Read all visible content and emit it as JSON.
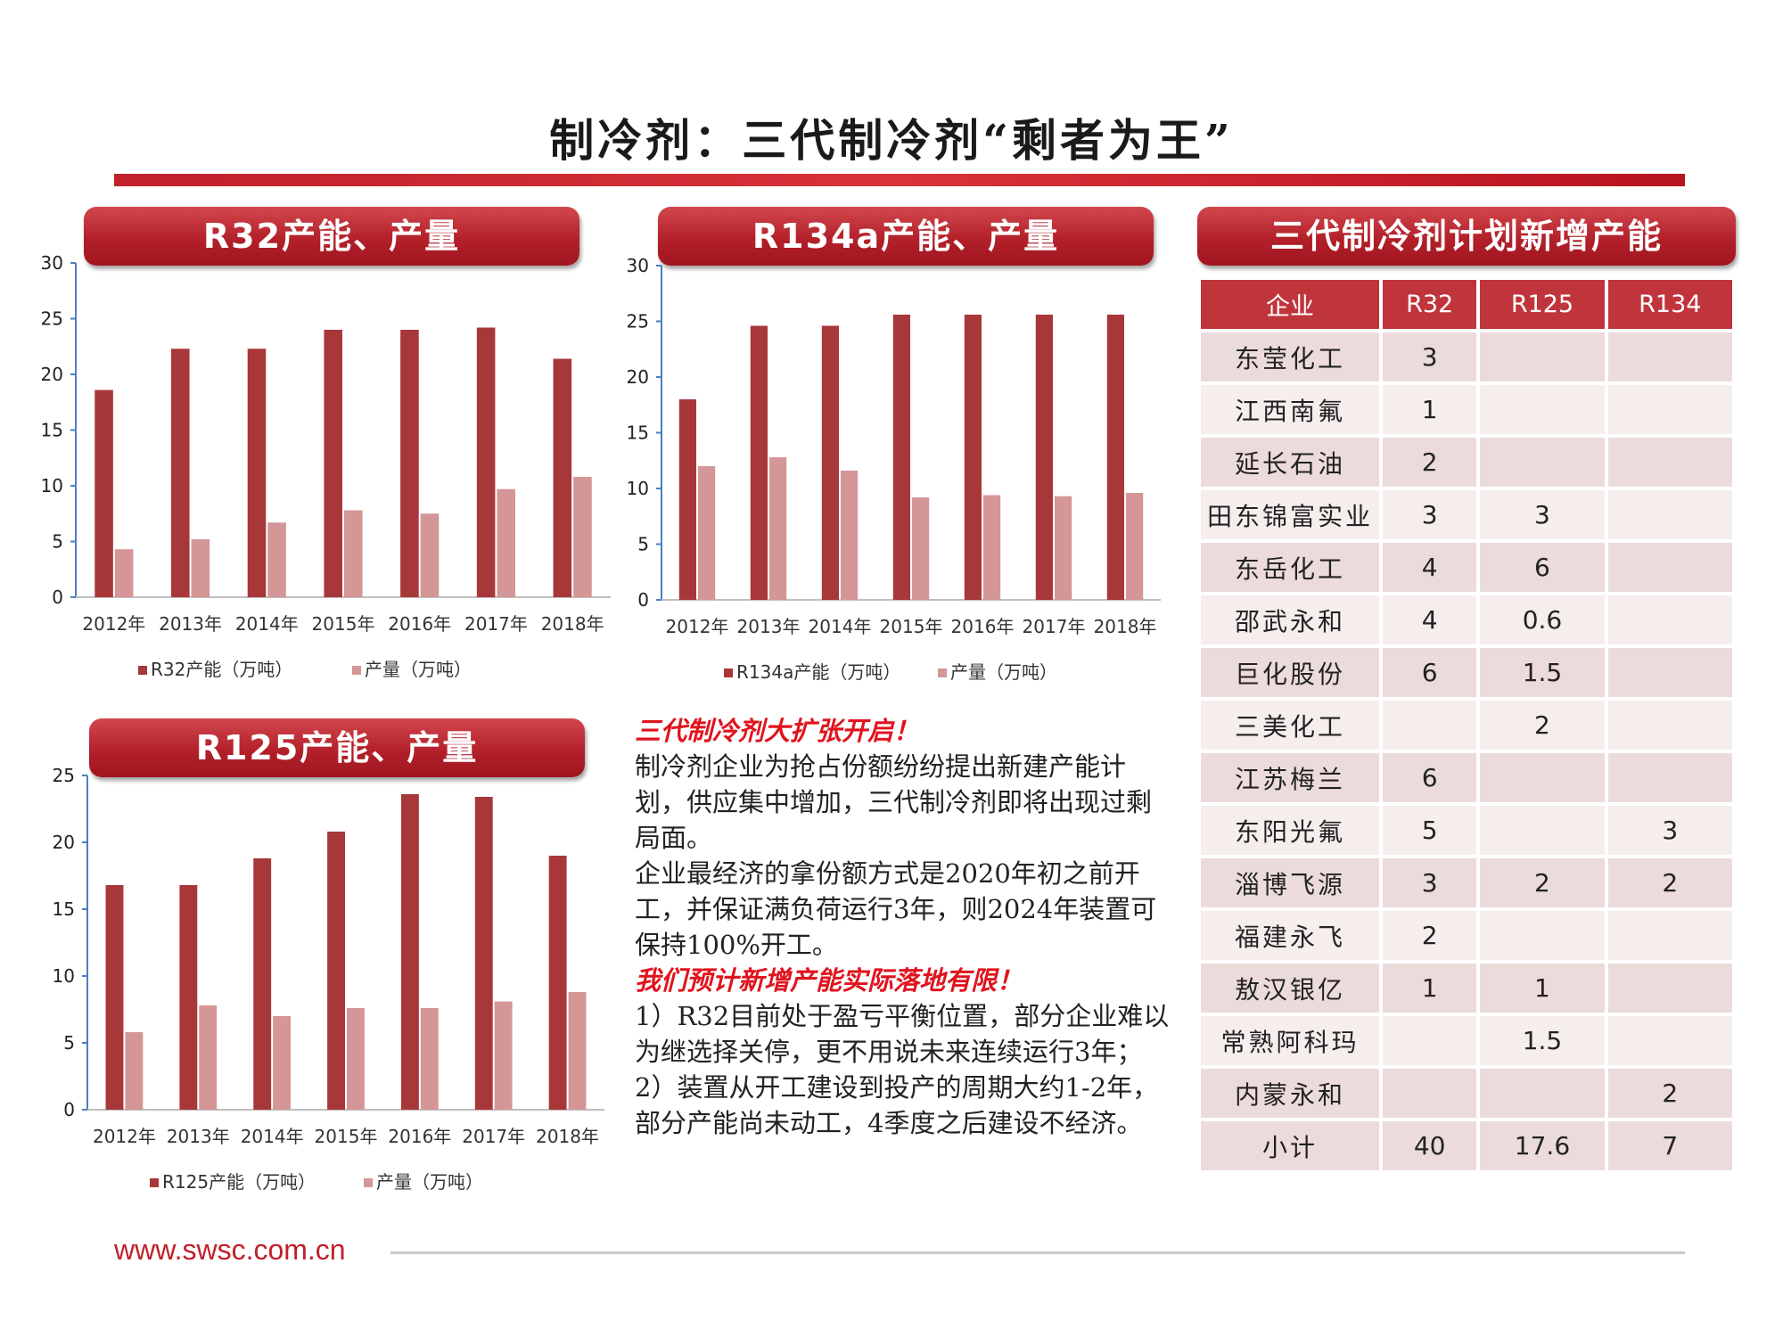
{
  "page_title": "制冷剂：三代制冷剂“剩者为王”",
  "footer_url": "www.swsc.com.cn",
  "colors": {
    "capacity": "#a8373a",
    "output": "#d49697",
    "accent": "#c0212a"
  },
  "chart_data": [
    {
      "type": "bar",
      "title": "R32产能、产量",
      "categories": [
        "2012年",
        "2013年",
        "2014年",
        "2015年",
        "2016年",
        "2017年",
        "2018年"
      ],
      "ylim": [
        0,
        30
      ],
      "yticks": [
        0,
        5,
        10,
        15,
        20,
        25,
        30
      ],
      "ytick_labels": [
        "0",
        "5",
        "10",
        "15",
        "20",
        "25",
        "30"
      ],
      "series": [
        {
          "name": "R32产能（万吨）",
          "values": [
            18.6,
            22.3,
            22.3,
            24.0,
            24.0,
            24.2,
            21.4
          ]
        },
        {
          "name": "产量（万吨）",
          "values": [
            4.3,
            5.2,
            6.7,
            7.8,
            7.5,
            9.7,
            10.8
          ]
        }
      ],
      "legend_position": "bottom"
    },
    {
      "type": "bar",
      "title": "R134a产能、产量",
      "categories": [
        "2012年",
        "2013年",
        "2014年",
        "2015年",
        "2016年",
        "2017年",
        "2018年"
      ],
      "ylim": [
        0,
        30
      ],
      "yticks": [
        0,
        5,
        10,
        15,
        20,
        25,
        30
      ],
      "ytick_labels": [
        "0",
        "5",
        "10",
        "15",
        "20",
        "25",
        "30"
      ],
      "series": [
        {
          "name": "R134a产能（万吨）",
          "values": [
            18.0,
            24.6,
            24.6,
            25.6,
            25.6,
            25.6,
            25.6
          ]
        },
        {
          "name": "产量（万吨）",
          "values": [
            12.0,
            12.8,
            11.6,
            9.2,
            9.4,
            9.3,
            9.6
          ]
        }
      ],
      "legend_position": "bottom"
    },
    {
      "type": "bar",
      "title": "R125产能、产量",
      "categories": [
        "2012年",
        "2013年",
        "2014年",
        "2015年",
        "2016年",
        "2017年",
        "2018年"
      ],
      "ylim": [
        0,
        25
      ],
      "yticks": [
        0,
        5,
        10,
        15,
        20,
        25
      ],
      "ytick_labels": [
        "0",
        "5",
        "10",
        "15",
        "20",
        "25"
      ],
      "series": [
        {
          "name": "R125产能（万吨）",
          "values": [
            16.8,
            16.8,
            18.8,
            20.8,
            23.6,
            23.4,
            19.0
          ]
        },
        {
          "name": "产量（万吨）",
          "values": [
            5.8,
            7.8,
            7.0,
            7.6,
            7.6,
            8.1,
            8.8
          ]
        }
      ],
      "legend_position": "bottom"
    },
    {
      "type": "table",
      "title": "三代制冷剂计划新增产能",
      "columns": [
        "企业",
        "R32",
        "R125",
        "R134"
      ],
      "rows": [
        [
          "东莹化工",
          "3",
          "",
          ""
        ],
        [
          "江西南氟",
          "1",
          "",
          ""
        ],
        [
          "延长石油",
          "2",
          "",
          ""
        ],
        [
          "田东锦富实业",
          "3",
          "3",
          ""
        ],
        [
          "东岳化工",
          "4",
          "6",
          ""
        ],
        [
          "邵武永和",
          "4",
          "0.6",
          ""
        ],
        [
          "巨化股份",
          "6",
          "1.5",
          ""
        ],
        [
          "三美化工",
          "",
          "2",
          ""
        ],
        [
          "江苏梅兰",
          "6",
          "",
          ""
        ],
        [
          "东阳光氟",
          "5",
          "",
          "3"
        ],
        [
          "淄博飞源",
          "3",
          "2",
          "2"
        ],
        [
          "福建永飞",
          "2",
          "",
          ""
        ],
        [
          "敖汉银亿",
          "1",
          "1",
          ""
        ],
        [
          "常熟阿科玛",
          "",
          "1.5",
          ""
        ],
        [
          "内蒙永和",
          "",
          "",
          "2"
        ],
        [
          "小计",
          "40",
          "17.6",
          "7"
        ]
      ]
    }
  ],
  "text_block": {
    "heading1": "三代制冷剂大扩张开启！",
    "para1": "制冷剂企业为抢占份额纷纷提出新建产能计划，供应集中增加，三代制冷剂即将出现过剩局面。",
    "para2": "企业最经济的拿份额方式是2020年初之前开工，并保证满负荷运行3年，则2024年装置可保持100%开工。",
    "heading2": "我们预计新增产能实际落地有限！",
    "para3": "1）R32目前处于盈亏平衡位置，部分企业难以为继选择关停，更不用说未来连续运行3年；",
    "para4": "2）装置从开工建设到投产的周期大约1-2年，部分产能尚未动工，4季度之后建设不经济。"
  }
}
